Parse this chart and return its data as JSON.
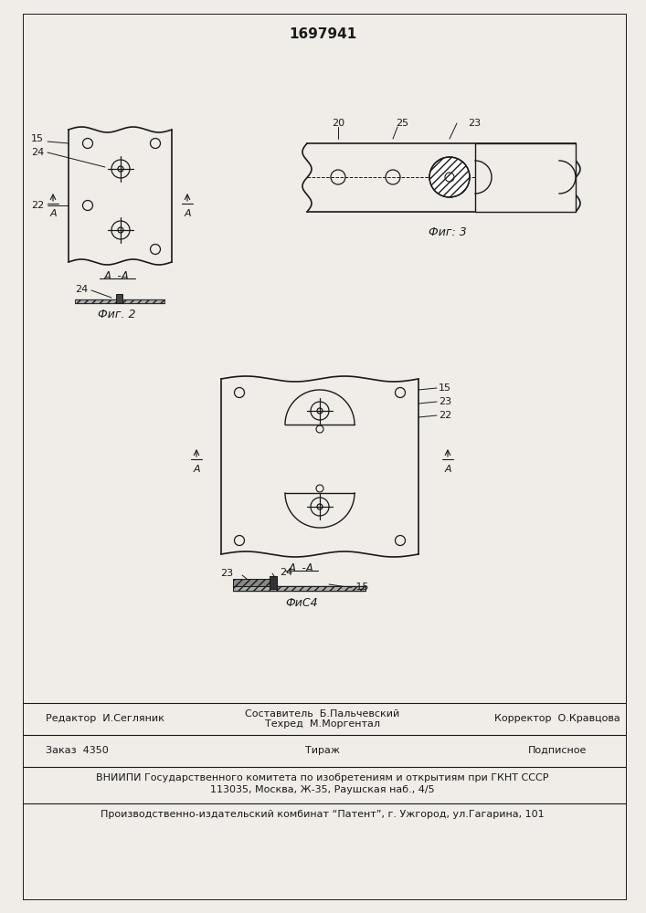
{
  "patent_number": "1697941",
  "background_color": "#f0ede8",
  "line_color": "#1a1a1a",
  "fig2_label": "Фиг. 2",
  "fig3_label": "Фиг: 3",
  "fig4_label": "ФиС4",
  "bottom_line1_left": "Редактор  И.Сегляник",
  "bottom_line1_center_top": "Составитель  Б.Пальчевский",
  "bottom_line1_center_bot": "Техред  М.Моргентал",
  "bottom_line1_right": "Корректор  О.Кравцова",
  "bottom_line2_left": "Заказ  4350",
  "bottom_line2_center": "Тираж",
  "bottom_line2_right": "Подписное",
  "bottom_line3a": "ВНИИПИ Государственного комитета по изобретениям и открытиям при ГКНТ СССР",
  "bottom_line3b": "113035, Москва, Ж-35, Раушская наб., 4/5",
  "bottom_line4": "Производственно-издательский комбинат “Патент”, г. Ужгород, ул.Гагарина, 101"
}
